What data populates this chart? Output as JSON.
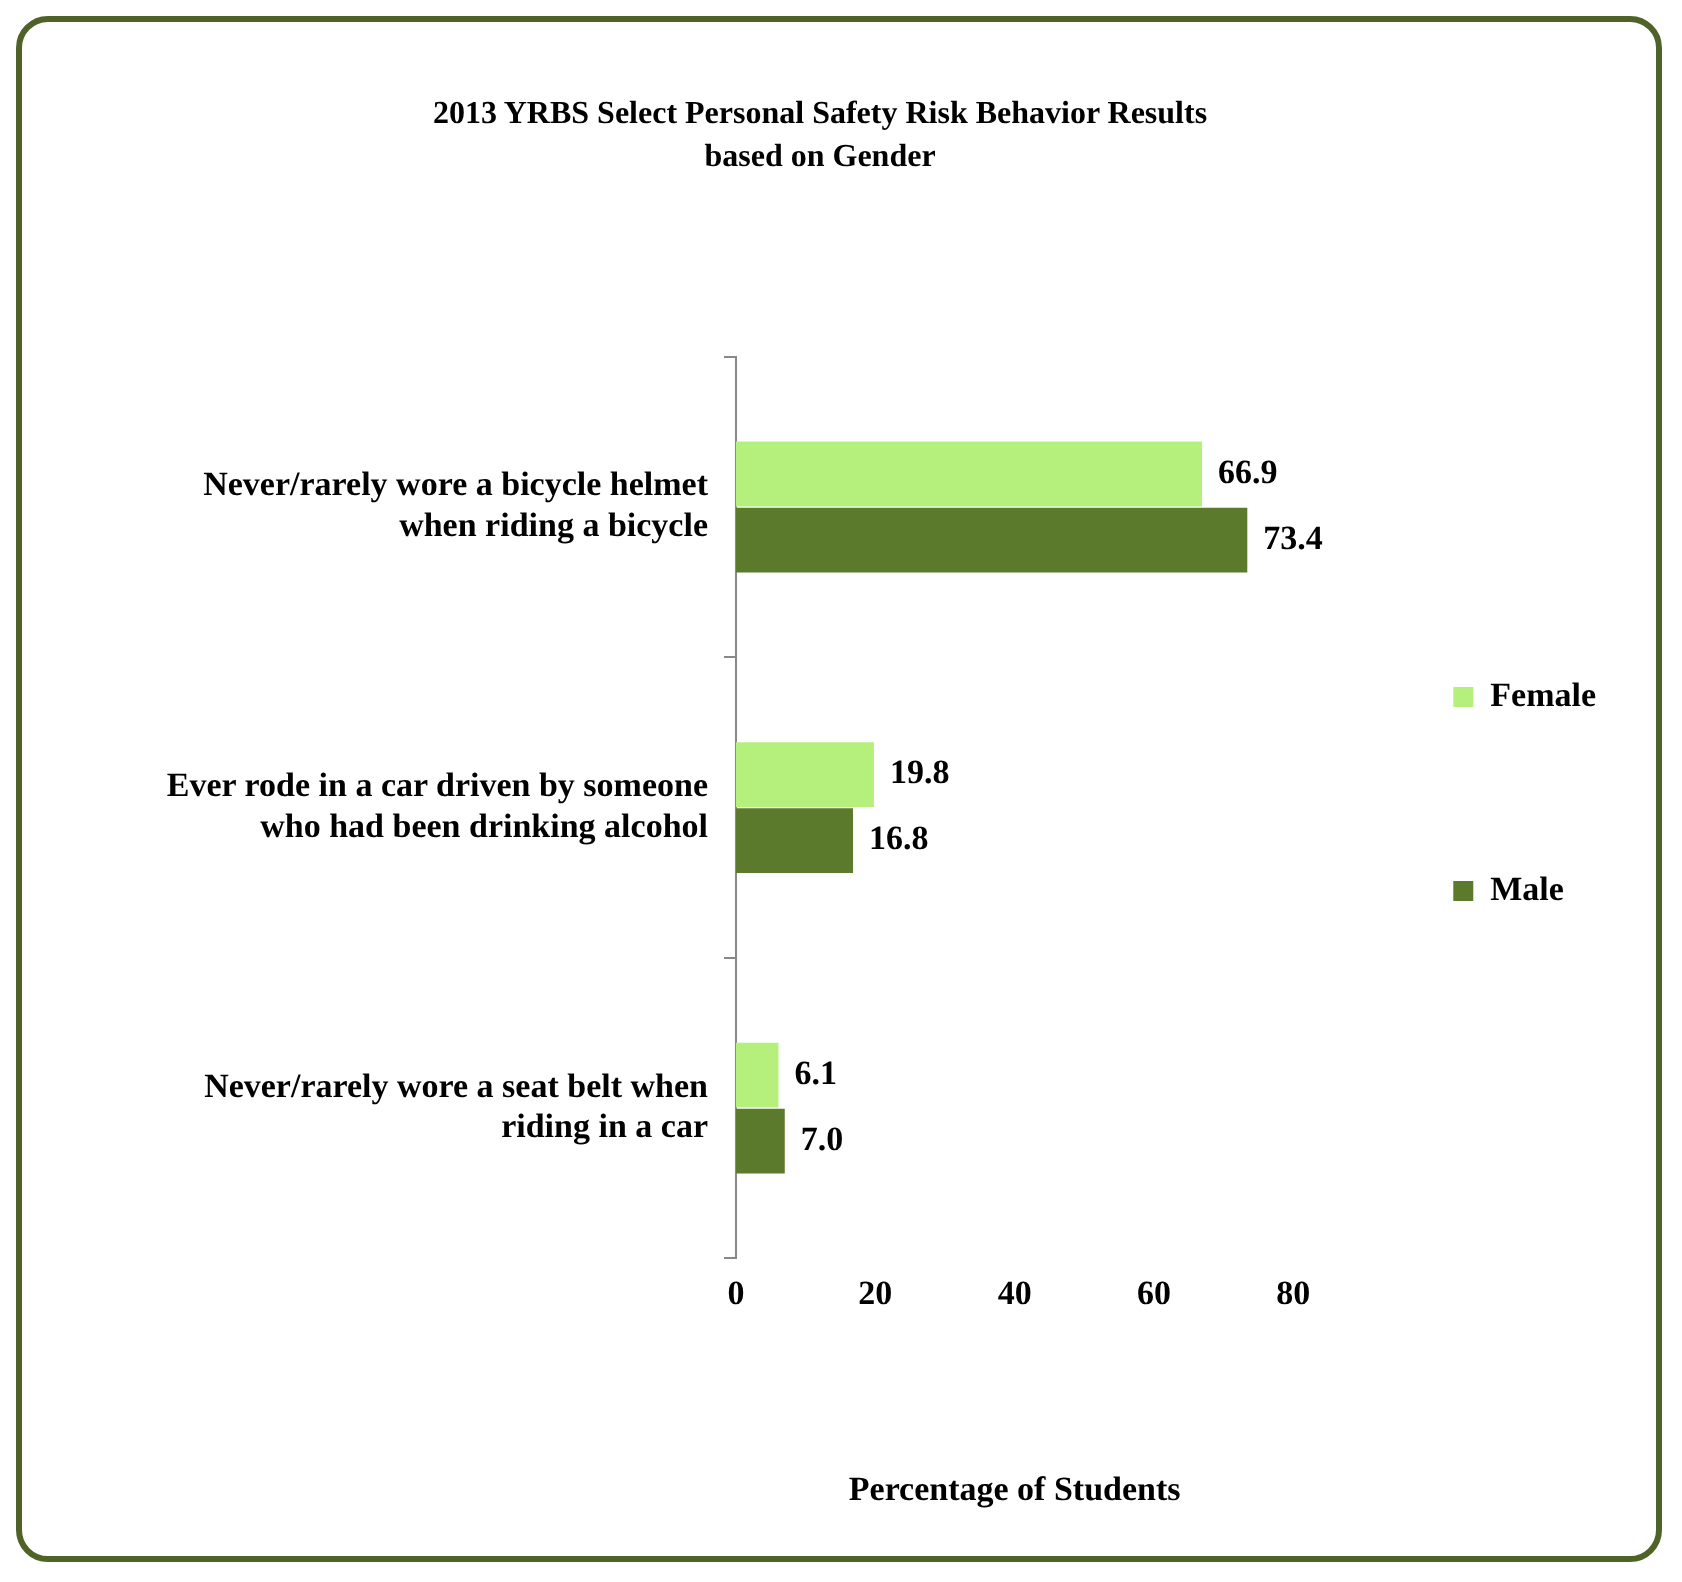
{
  "chart_data": {
    "type": "bar",
    "orientation": "horizontal",
    "title": "2013 YRBS Select Personal Safety Risk Behavior Results",
    "subtitle": "based on Gender",
    "xlabel": "Percentage of Students",
    "categories": [
      "Never/rarely wore a bicycle helmet when riding a bicycle",
      "Ever rode in a car driven by someone who had been drinking alcohol",
      "Never/rarely wore a seat belt when riding in a car"
    ],
    "series": [
      {
        "name": "Female",
        "color": "#b6f07c",
        "values": [
          66.9,
          19.8,
          6.1
        ],
        "value_labels": [
          "66.9",
          "19.8",
          "6.1"
        ]
      },
      {
        "name": "Male",
        "color": "#5b7a2c",
        "values": [
          73.4,
          16.8,
          7.0
        ],
        "value_labels": [
          "73.4",
          "16.8",
          "7.0"
        ]
      }
    ],
    "xlim": [
      0,
      80
    ],
    "xticks": [
      0,
      20,
      40,
      60,
      80
    ],
    "legend": "right"
  }
}
